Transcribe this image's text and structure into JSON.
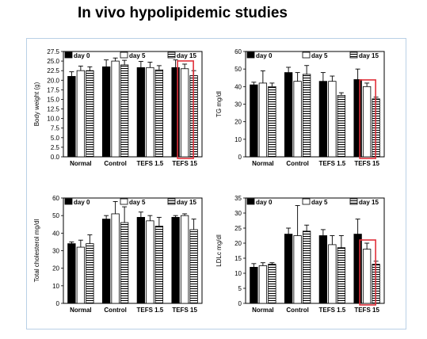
{
  "slide_title": "In vivo hypolipidemic studies",
  "chart_data": [
    {
      "type": "bar",
      "ylabel": "Body weight (g)",
      "categories": [
        "Normal",
        "Control",
        "TEFS 1.5",
        "TEFS 15"
      ],
      "ticks": [
        "0.0",
        "2.5",
        "5.0",
        "7.5",
        "10.0",
        "12.5",
        "15.0",
        "17.5",
        "20.0",
        "22.5",
        "25.0",
        "27.5"
      ],
      "ylim": [
        0,
        27.5
      ],
      "series": [
        {
          "name": "day 0",
          "values": [
            21.0,
            23.5,
            23.3,
            23.3
          ],
          "errors": [
            1.2,
            1.8,
            1.6,
            2.0
          ]
        },
        {
          "name": "day 5",
          "values": [
            22.5,
            25.0,
            23.3,
            23.0
          ],
          "errors": [
            1.2,
            0.8,
            1.4,
            1.2
          ]
        },
        {
          "name": "day 15",
          "values": [
            22.5,
            24.0,
            22.7,
            21.2
          ],
          "errors": [
            1.0,
            1.2,
            1.1,
            1.3
          ]
        }
      ],
      "highlight_category": 3,
      "legend": "top"
    },
    {
      "type": "bar",
      "ylabel": "TG mg/dl",
      "categories": [
        "Normal",
        "Control",
        "TEFS 1.5",
        "TEFS 15"
      ],
      "ticks": [
        "0",
        "10",
        "20",
        "30",
        "40",
        "50",
        "60"
      ],
      "ylim": [
        0,
        60
      ],
      "series": [
        {
          "name": "day 0",
          "values": [
            41,
            48,
            43,
            44
          ],
          "errors": [
            1.5,
            3,
            5,
            6
          ]
        },
        {
          "name": "day 5",
          "values": [
            42,
            43,
            43,
            40
          ],
          "errors": [
            7,
            5,
            3,
            2
          ]
        },
        {
          "name": "day 15",
          "values": [
            40,
            47,
            35,
            33
          ],
          "errors": [
            2,
            5,
            1.5,
            1
          ]
        }
      ],
      "highlight_category": 3,
      "legend": "top"
    },
    {
      "type": "bar",
      "ylabel": "Total cholesterol mg/dl",
      "categories": [
        "Normal",
        "Control",
        "TEFS 1.5",
        "TEFS 15"
      ],
      "ticks": [
        "0",
        "10",
        "20",
        "30",
        "40",
        "50",
        "60"
      ],
      "ylim": [
        0,
        60
      ],
      "series": [
        {
          "name": "day 0",
          "values": [
            34,
            48,
            49,
            49
          ],
          "errors": [
            1,
            2,
            3,
            1
          ]
        },
        {
          "name": "day 5",
          "values": [
            32,
            51,
            47,
            50
          ],
          "errors": [
            4,
            7,
            3,
            1
          ]
        },
        {
          "name": "day 15",
          "values": [
            34,
            46,
            44,
            42
          ],
          "errors": [
            5,
            9,
            5,
            6
          ]
        }
      ],
      "highlight_category": null,
      "legend": "top"
    },
    {
      "type": "bar",
      "ylabel": "LDLc mg/dl",
      "categories": [
        "Normal",
        "Control",
        "TEFS 1.5",
        "TEFS 15"
      ],
      "ticks": [
        "0",
        "5",
        "10",
        "15",
        "20",
        "25",
        "30",
        "35"
      ],
      "ylim": [
        0,
        35
      ],
      "series": [
        {
          "name": "day 0",
          "values": [
            12,
            23,
            22.5,
            23
          ],
          "errors": [
            1.2,
            2,
            2,
            5
          ]
        },
        {
          "name": "day 5",
          "values": [
            12.5,
            22.5,
            19.5,
            18
          ],
          "errors": [
            1.0,
            10,
            3,
            2
          ]
        },
        {
          "name": "day 15",
          "values": [
            13,
            24,
            18.5,
            13
          ],
          "errors": [
            0.5,
            2,
            4,
            1
          ]
        }
      ],
      "highlight_category": 3,
      "legend": "top"
    }
  ]
}
